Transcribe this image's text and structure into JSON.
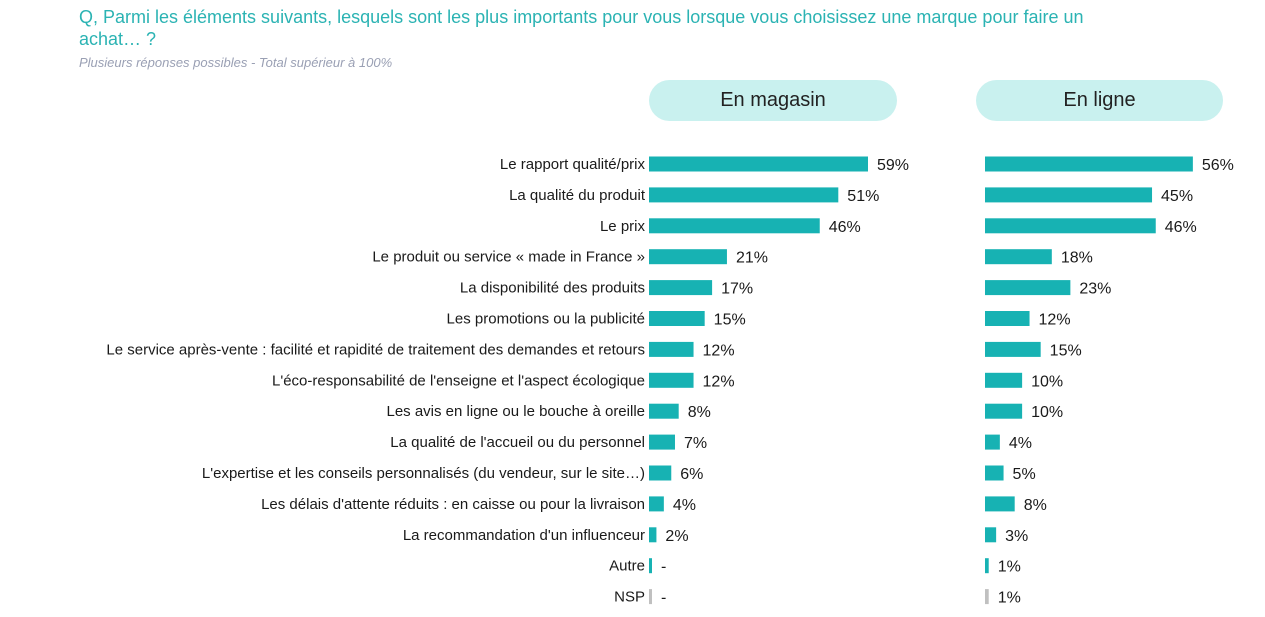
{
  "header": {
    "question": "Q, Parmi les éléments suivants, lesquels sont les plus importants pour vous lorsque vous choisissez une marque pour faire un achat… ?",
    "note": "Plusieurs réponses possibles - Total supérieur à 100%"
  },
  "colors": {
    "bar": "#17b2b3",
    "bar_nsp": "#c0c0c0",
    "pill_bg": "#c9f1ef",
    "title": "#2bb3b3",
    "note": "#9aa0b4"
  },
  "chart_data": {
    "type": "bar",
    "orientation": "horizontal",
    "categories": [
      "Le rapport qualité/prix",
      "La qualité du produit",
      "Le prix",
      "Le produit ou service « made in France »",
      "La disponibilité des produits",
      "Les promotions ou la publicité",
      "Le service après-vente : facilité et rapidité de traitement des demandes et retours",
      "L'éco-responsabilité de l'enseigne et l'aspect écologique",
      "Les avis en ligne ou le bouche à oreille",
      "La qualité de l'accueil ou du personnel",
      "L'expertise et les conseils personnalisés (du vendeur, sur le site…)",
      "Les délais d'attente réduits : en caisse ou pour la livraison",
      "La recommandation d'un influenceur",
      "Autre",
      "NSP"
    ],
    "series": [
      {
        "name": "En magasin",
        "values": [
          59,
          51,
          46,
          21,
          17,
          15,
          12,
          12,
          8,
          7,
          6,
          4,
          2,
          0,
          0
        ],
        "labels": [
          "59%",
          "51%",
          "46%",
          "21%",
          "17%",
          "15%",
          "12%",
          "12%",
          "8%",
          "7%",
          "6%",
          "4%",
          "2%",
          "-",
          "-"
        ]
      },
      {
        "name": "En ligne",
        "values": [
          56,
          45,
          46,
          18,
          23,
          12,
          15,
          10,
          10,
          4,
          5,
          8,
          3,
          1,
          1
        ],
        "labels": [
          "56%",
          "45%",
          "46%",
          "18%",
          "23%",
          "12%",
          "15%",
          "10%",
          "10%",
          "4%",
          "5%",
          "8%",
          "3%",
          "1%",
          "1%"
        ]
      }
    ],
    "highlight_category": "NSP",
    "xlim": [
      0,
      100
    ],
    "grid": false
  }
}
